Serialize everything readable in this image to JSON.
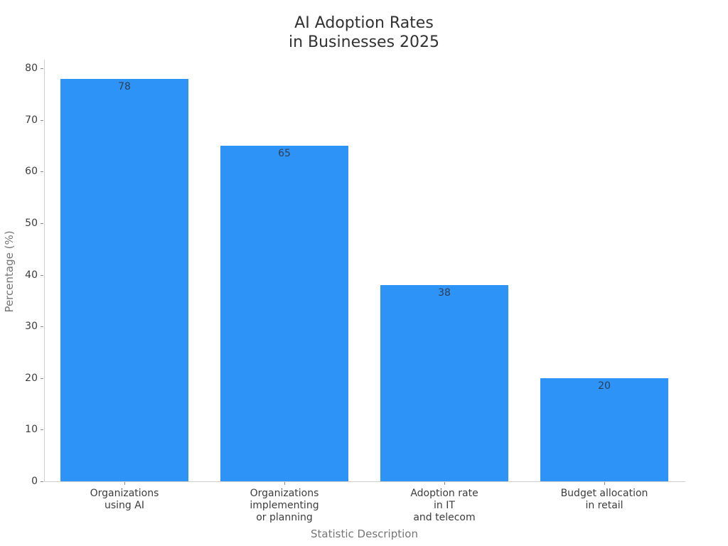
{
  "chart_data": {
    "type": "bar",
    "title": "AI Adoption Rates\nin Businesses 2025",
    "xlabel": "Statistic Description",
    "ylabel": "Percentage (%)",
    "categories": [
      "Organizations\nusing AI",
      "Organizations\nimplementing\nor planning",
      "Adoption rate\nin IT\nand telecom",
      "Budget allocation\nin retail"
    ],
    "values": [
      78,
      65,
      38,
      20
    ],
    "yticks": [
      0,
      10,
      20,
      30,
      40,
      50,
      60,
      70,
      80
    ],
    "ylim": [
      0,
      81.9
    ],
    "grid": false,
    "legend": null,
    "colors": {
      "bar_fill": "#2E93F6",
      "value_label": "#2e3f54",
      "tick_label": "#3c3c3c",
      "axis_title": "#757575",
      "chart_title": "#323232",
      "spine": "#cfcfcf",
      "background": "#ffffff"
    }
  }
}
